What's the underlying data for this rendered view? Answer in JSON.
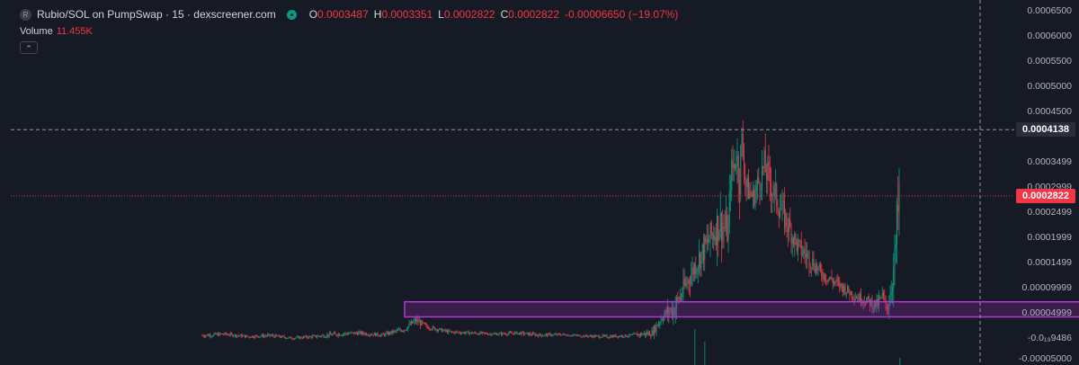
{
  "legend": {
    "symbol_badge": "R",
    "title": "Rubio/SOL on PumpSwap · 15 · dexscreener.com",
    "open_key": "O",
    "open": "0.0003487",
    "high_key": "H",
    "high": "0.0003351",
    "low_key": "L",
    "low": "0.0002822",
    "close_key": "C",
    "close": "0.0002822",
    "change": "-0.00006650 (−19.07%)"
  },
  "volume": {
    "label": "Volume",
    "value": "11.455K"
  },
  "collapse_icon": "chevron-up-icon",
  "colors": {
    "up": "#089981",
    "down": "#f23645",
    "zone": "#9c27b0",
    "background": "#161a25"
  },
  "price_axis": {
    "ticks": [
      "0.0006500",
      "0.0006000",
      "0.0005500",
      "0.0005000",
      "0.0004500",
      "0.0003499",
      "0.0002999",
      "0.0002499",
      "0.0001999",
      "0.0001499",
      "0.00009999",
      "0.00004999",
      "-0.0₁₉9486",
      "-0.00005000"
    ],
    "crosshair_price": "0.0004138",
    "last_price": "0.0002822"
  },
  "chart_data": {
    "type": "candlestick",
    "y_axis_range": [
      -5e-05,
      0.00065
    ],
    "series": [
      {
        "x": [
          0,
          20,
          40,
          60,
          80,
          100,
          120,
          140,
          160,
          180,
          190,
          200,
          220,
          240,
          260,
          280,
          300,
          320,
          340,
          360,
          380,
          400,
          410,
          420,
          440,
          460,
          468,
          470,
          475,
          478,
          480,
          484,
          490,
          500,
          510,
          520,
          530,
          540,
          550,
          560,
          570,
          580,
          590,
          600,
          605,
          610,
          616,
          620
        ],
        "close": [
          5e-06,
          8e-06,
          3e-06,
          5e-06,
          0.0,
          3e-06,
          8e-06,
          1e-05,
          6e-06,
          1.8e-05,
          3.5e-05,
          2.2e-05,
          1.2e-05,
          1e-05,
          8e-06,
          1e-05,
          6e-06,
          7e-06,
          4e-06,
          3e-06,
          5e-06,
          1e-05,
          4.5e-05,
          6e-05,
          0.00015,
          0.00023,
          0.00021,
          0.00032,
          0.00036,
          0.00033,
          0.00039,
          0.0003,
          0.00028,
          0.00034,
          0.00028,
          0.00023,
          0.00018,
          0.00016,
          0.00013,
          0.000115,
          0.0001,
          8.5e-05,
          7.5e-05,
          6.5e-05,
          8e-05,
          6e-05,
          0.00015,
          0.000282
        ],
        "high": [
          1.4e-05,
          1.4e-05,
          9e-06,
          1.2e-05,
          5e-06,
          1e-05,
          1.8e-05,
          1.8e-05,
          1.2e-05,
          3e-05,
          5e-05,
          3e-05,
          1.8e-05,
          1.5e-05,
          1.2e-05,
          1.6e-05,
          1.2e-05,
          1.1e-05,
          8e-06,
          8e-06,
          1e-05,
          3e-05,
          7e-05,
          0.00012,
          0.0002,
          0.0003,
          0.0003,
          0.0004,
          0.00042,
          0.00048,
          0.00042,
          0.00036,
          0.00033,
          0.0004,
          0.00034,
          0.00028,
          0.00023,
          0.0002,
          0.00016,
          0.00014,
          0.00012,
          0.00011,
          0.0001,
          9.5e-05,
          0.00012,
          9e-05,
          0.0002,
          0.000414
        ],
        "low": [
          0.0,
          2e-06,
          -2e-06,
          0.0,
          -4e-06,
          -2e-06,
          2e-06,
          4e-06,
          0.0,
          1e-05,
          2e-05,
          1.4e-05,
          6e-06,
          4e-06,
          2e-06,
          4e-06,
          0.0,
          2e-06,
          0.0,
          -3e-06,
          0.0,
          3e-06,
          2.5e-05,
          4e-05,
          0.00011,
          0.00015,
          0.00017,
          0.00026,
          0.0003,
          0.00028,
          0.0003,
          0.00026,
          0.00024,
          0.00027,
          0.00022,
          0.00018,
          0.00015,
          0.00012,
          0.00011,
          9e-05,
          8e-05,
          7e-05,
          6e-05,
          4.5e-05,
          5e-05,
          4e-05,
          5.5e-05,
          0.00013
        ]
      }
    ],
    "highlight_zone": {
      "y_min": 4.2e-05,
      "y_max": 7.2e-05,
      "x_start": 180,
      "x_end": 810
    },
    "crosshair_y": 0.0004138,
    "last_price_y": 0.0002822,
    "grid": false
  }
}
